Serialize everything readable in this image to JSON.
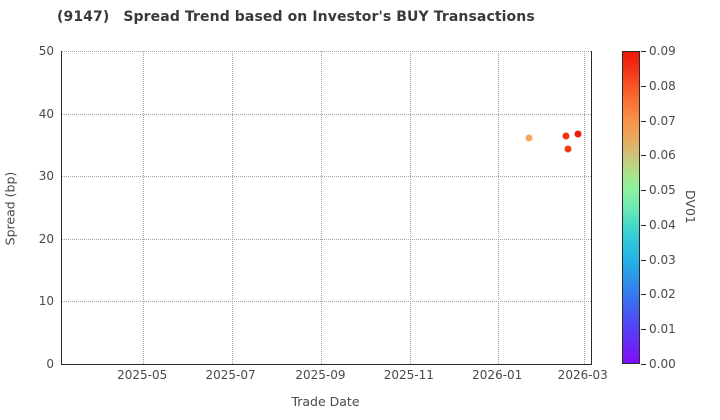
{
  "header": {
    "ticker": "(9147)",
    "title": "Spread Trend based on Investor's BUY Transactions"
  },
  "colors": {
    "spine": "#2b2b2b",
    "grid": "#a3a3a3",
    "text": "#4a4a4a",
    "title_text": "#3a3a3a",
    "background": "#ffffff"
  },
  "chart_data": {
    "type": "scatter",
    "title": "(9147)  Spread Trend based on Investor's BUY Transactions",
    "xlabel": "Trade Date",
    "ylabel": "Spread (bp)",
    "grid": "on",
    "grid_style": "dotted",
    "xlim": [
      "2025-03-06",
      "2026-03-06"
    ],
    "ylim": [
      0,
      50
    ],
    "x_ticks": [
      {
        "date": "2025-05-01",
        "label": "2025-05"
      },
      {
        "date": "2025-07-01",
        "label": "2025-07"
      },
      {
        "date": "2025-09-01",
        "label": "2025-09"
      },
      {
        "date": "2025-11-01",
        "label": "2025-11"
      },
      {
        "date": "2026-01-01",
        "label": "2026-01"
      },
      {
        "date": "2026-03-01",
        "label": "2026-03"
      }
    ],
    "y_ticks": [
      0,
      10,
      20,
      30,
      40,
      50
    ],
    "points": [
      {
        "date": "2026-01-22",
        "spread_bp": 36.1,
        "dv01": 0.065,
        "color": "#f6a55c"
      },
      {
        "date": "2026-02-17",
        "spread_bp": 36.4,
        "dv01": 0.088,
        "color": "#f4330f"
      },
      {
        "date": "2026-02-18",
        "spread_bp": 34.3,
        "dv01": 0.087,
        "color": "#f23c14"
      },
      {
        "date": "2026-02-25",
        "spread_bp": 36.7,
        "dv01": 0.089,
        "color": "#ee1b0c"
      }
    ],
    "colorbar": {
      "label": "DV01",
      "min": 0.0,
      "max": 0.09,
      "tick_labels": [
        "0.00",
        "0.01",
        "0.02",
        "0.03",
        "0.04",
        "0.05",
        "0.06",
        "0.07",
        "0.08",
        "0.09"
      ],
      "colormap": "rainbow",
      "gradient_stops": [
        [
          0.0,
          "#7f0dfa"
        ],
        [
          0.11,
          "#5640f7"
        ],
        [
          0.22,
          "#3579ee"
        ],
        [
          0.33,
          "#25b2e6"
        ],
        [
          0.39,
          "#2fc6dd"
        ],
        [
          0.44,
          "#45d8c8"
        ],
        [
          0.5,
          "#6ceab3"
        ],
        [
          0.56,
          "#8df29d"
        ],
        [
          0.61,
          "#abe28b"
        ],
        [
          0.67,
          "#cfc177"
        ],
        [
          0.72,
          "#eaa960"
        ],
        [
          0.78,
          "#f69348"
        ],
        [
          0.83,
          "#f97736"
        ],
        [
          0.89,
          "#fa5526"
        ],
        [
          0.94,
          "#f53517"
        ],
        [
          1.0,
          "#ee170b"
        ]
      ]
    }
  }
}
